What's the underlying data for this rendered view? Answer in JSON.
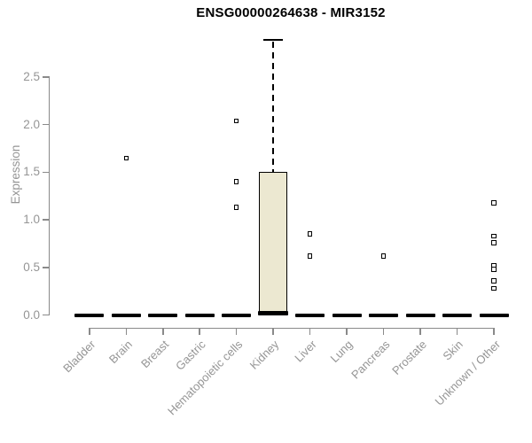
{
  "chart_data": {
    "type": "boxplot",
    "title": "ENSG00000264638 - MIR3152",
    "ylabel": "Expression",
    "xlabel": "",
    "yticks": [
      0.0,
      0.5,
      1.0,
      1.5,
      2.0,
      2.5
    ],
    "ylim": [
      0,
      2.9
    ],
    "grid": false,
    "legend": "none",
    "box_fill_color": "#ece8d1",
    "axis_color": "#8a8a8a",
    "label_color": "#959595",
    "categories": [
      "Bladder",
      "Brain",
      "Breast",
      "Gastric",
      "Hematopoietic cells",
      "Kidney",
      "Liver",
      "Lung",
      "Pancreas",
      "Prostate",
      "Skin",
      "Unknown / Other"
    ],
    "boxes": [
      {
        "label": "Bladder",
        "q1": 0,
        "median": 0,
        "q3": 0,
        "whisker_low": 0,
        "whisker_high": 0,
        "outliers": []
      },
      {
        "label": "Brain",
        "q1": 0,
        "median": 0,
        "q3": 0,
        "whisker_low": 0,
        "whisker_high": 0,
        "outliers": [
          1.65
        ]
      },
      {
        "label": "Breast",
        "q1": 0,
        "median": 0,
        "q3": 0,
        "whisker_low": 0,
        "whisker_high": 0,
        "outliers": []
      },
      {
        "label": "Gastric",
        "q1": 0,
        "median": 0,
        "q3": 0,
        "whisker_low": 0,
        "whisker_high": 0,
        "outliers": []
      },
      {
        "label": "Hematopoietic cells",
        "q1": 0,
        "median": 0,
        "q3": 0,
        "whisker_low": 0,
        "whisker_high": 0,
        "outliers": [
          2.04,
          1.4,
          1.13
        ]
      },
      {
        "label": "Kidney",
        "q1": 0.02,
        "median": 0.02,
        "q3": 1.5,
        "whisker_low": 0,
        "whisker_high": 2.89,
        "outliers": []
      },
      {
        "label": "Liver",
        "q1": 0,
        "median": 0,
        "q3": 0,
        "whisker_low": 0,
        "whisker_high": 0,
        "outliers": [
          0.85,
          0.62
        ]
      },
      {
        "label": "Lung",
        "q1": 0,
        "median": 0,
        "q3": 0,
        "whisker_low": 0,
        "whisker_high": 0,
        "outliers": []
      },
      {
        "label": "Pancreas",
        "q1": 0,
        "median": 0,
        "q3": 0,
        "whisker_low": 0,
        "whisker_high": 0,
        "outliers": [
          0.62
        ]
      },
      {
        "label": "Prostate",
        "q1": 0,
        "median": 0,
        "q3": 0,
        "whisker_low": 0,
        "whisker_high": 0,
        "outliers": []
      },
      {
        "label": "Skin",
        "q1": 0,
        "median": 0,
        "q3": 0,
        "whisker_low": 0,
        "whisker_high": 0,
        "outliers": []
      },
      {
        "label": "Unknown / Other",
        "q1": 0,
        "median": 0,
        "q3": 0,
        "whisker_low": 0,
        "whisker_high": 0,
        "outliers": [
          1.18,
          0.83,
          0.76,
          0.52,
          0.48,
          0.36,
          0.28
        ]
      }
    ]
  }
}
